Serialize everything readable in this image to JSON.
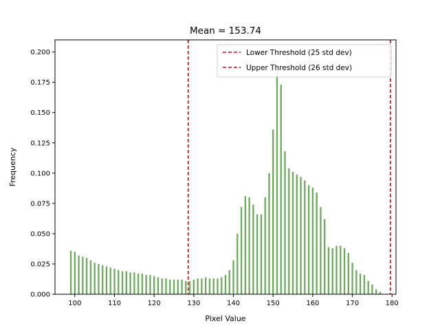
{
  "chart_data": {
    "type": "bar",
    "title": "Mean = 153.74",
    "xlabel": "Pixel Value",
    "ylabel": "Frequency",
    "xlim": [
      95,
      181
    ],
    "ylim": [
      0,
      0.21
    ],
    "xticks": [
      100,
      110,
      120,
      130,
      140,
      150,
      160,
      170,
      180
    ],
    "yticks": [
      0.0,
      0.025,
      0.05,
      0.075,
      0.1,
      0.125,
      0.15,
      0.175,
      0.2
    ],
    "ytick_labels": [
      "0.000",
      "0.025",
      "0.050",
      "0.075",
      "0.100",
      "0.125",
      "0.150",
      "0.175",
      "0.200"
    ],
    "bar_color": "#6aaa5a",
    "grid": false,
    "bars": {
      "x": [
        99,
        100,
        101,
        102,
        103,
        104,
        105,
        106,
        107,
        108,
        109,
        110,
        111,
        112,
        113,
        114,
        115,
        116,
        117,
        118,
        119,
        120,
        121,
        122,
        123,
        124,
        125,
        126,
        127,
        128,
        129,
        130,
        131,
        132,
        133,
        134,
        135,
        136,
        137,
        138,
        139,
        140,
        141,
        142,
        143,
        144,
        145,
        146,
        147,
        148,
        149,
        150,
        151,
        152,
        153,
        154,
        155,
        156,
        157,
        158,
        159,
        160,
        161,
        162,
        163,
        164,
        165,
        166,
        167,
        168,
        169,
        170,
        171,
        172,
        173,
        174,
        175,
        176,
        177
      ],
      "y": [
        0.036,
        0.035,
        0.032,
        0.031,
        0.03,
        0.028,
        0.026,
        0.025,
        0.024,
        0.023,
        0.022,
        0.021,
        0.02,
        0.019,
        0.019,
        0.018,
        0.018,
        0.017,
        0.017,
        0.016,
        0.016,
        0.015,
        0.014,
        0.013,
        0.013,
        0.012,
        0.012,
        0.012,
        0.012,
        0.011,
        0.011,
        0.012,
        0.013,
        0.013,
        0.014,
        0.013,
        0.013,
        0.013,
        0.014,
        0.016,
        0.02,
        0.028,
        0.05,
        0.072,
        0.081,
        0.08,
        0.074,
        0.066,
        0.066,
        0.08,
        0.1,
        0.136,
        0.188,
        0.173,
        0.118,
        0.104,
        0.101,
        0.099,
        0.097,
        0.094,
        0.09,
        0.088,
        0.084,
        0.072,
        0.062,
        0.039,
        0.038,
        0.04,
        0.04,
        0.038,
        0.034,
        0.026,
        0.02,
        0.017,
        0.016,
        0.011,
        0.008,
        0.004,
        0.002
      ]
    },
    "thresholds": [
      {
        "name": "Lower Threshold (25 std dev)",
        "x": 128.6,
        "color": "#dd0000"
      },
      {
        "name": "Upper Threshold (26 std dev)",
        "x": 179.6,
        "color": "#dd0000"
      }
    ],
    "legend_placement": "top-right"
  }
}
